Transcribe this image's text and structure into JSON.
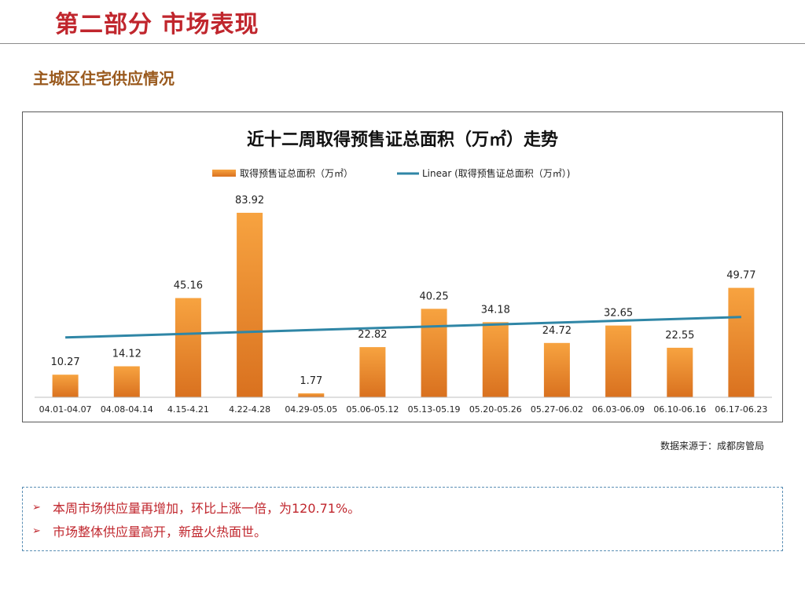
{
  "page": {
    "section_title": "第二部分 市场表现",
    "subtitle": "主城区住宅供应情况",
    "source_note": "数据来源于：成都房管局"
  },
  "notes": [
    {
      "icon": "arrow-bullet-icon",
      "text": "本周市场供应量再增加，环比上涨一倍，为120.71%。"
    },
    {
      "icon": "arrow-bullet-icon",
      "text": "市场整体供应量高开，新盘火热面世。"
    }
  ],
  "colors": {
    "accent_red": "#c0262d",
    "subtitle_brown": "#9a5a1e",
    "bar_orange": "#f39533",
    "trend_line": "#2f86a6"
  },
  "chart_data": {
    "type": "bar",
    "title": "近十二周取得预售证总面积（万㎡）走势",
    "xlabel": "",
    "ylabel": "",
    "ylim": [
      0,
      90
    ],
    "grid": false,
    "legend_position": "top-center",
    "categories": [
      "04.01-04.07",
      "04.08-04.14",
      "4.15-4.21",
      "4.22-4.28",
      "04.29-05.05",
      "05.06-05.12",
      "05.13-05.19",
      "05.20-05.26",
      "05.27-06.02",
      "06.03-06.09",
      "06.10-06.16",
      "06.17-06.23"
    ],
    "series": [
      {
        "name": "取得预售证总面积（万㎡）",
        "values": [
          10.27,
          14.12,
          45.16,
          83.92,
          1.77,
          22.82,
          40.25,
          34.18,
          24.72,
          32.65,
          22.55,
          49.77
        ]
      }
    ],
    "trendline": {
      "name": "Linear (取得预售证总面积（万㎡）)",
      "type": "linear"
    }
  }
}
